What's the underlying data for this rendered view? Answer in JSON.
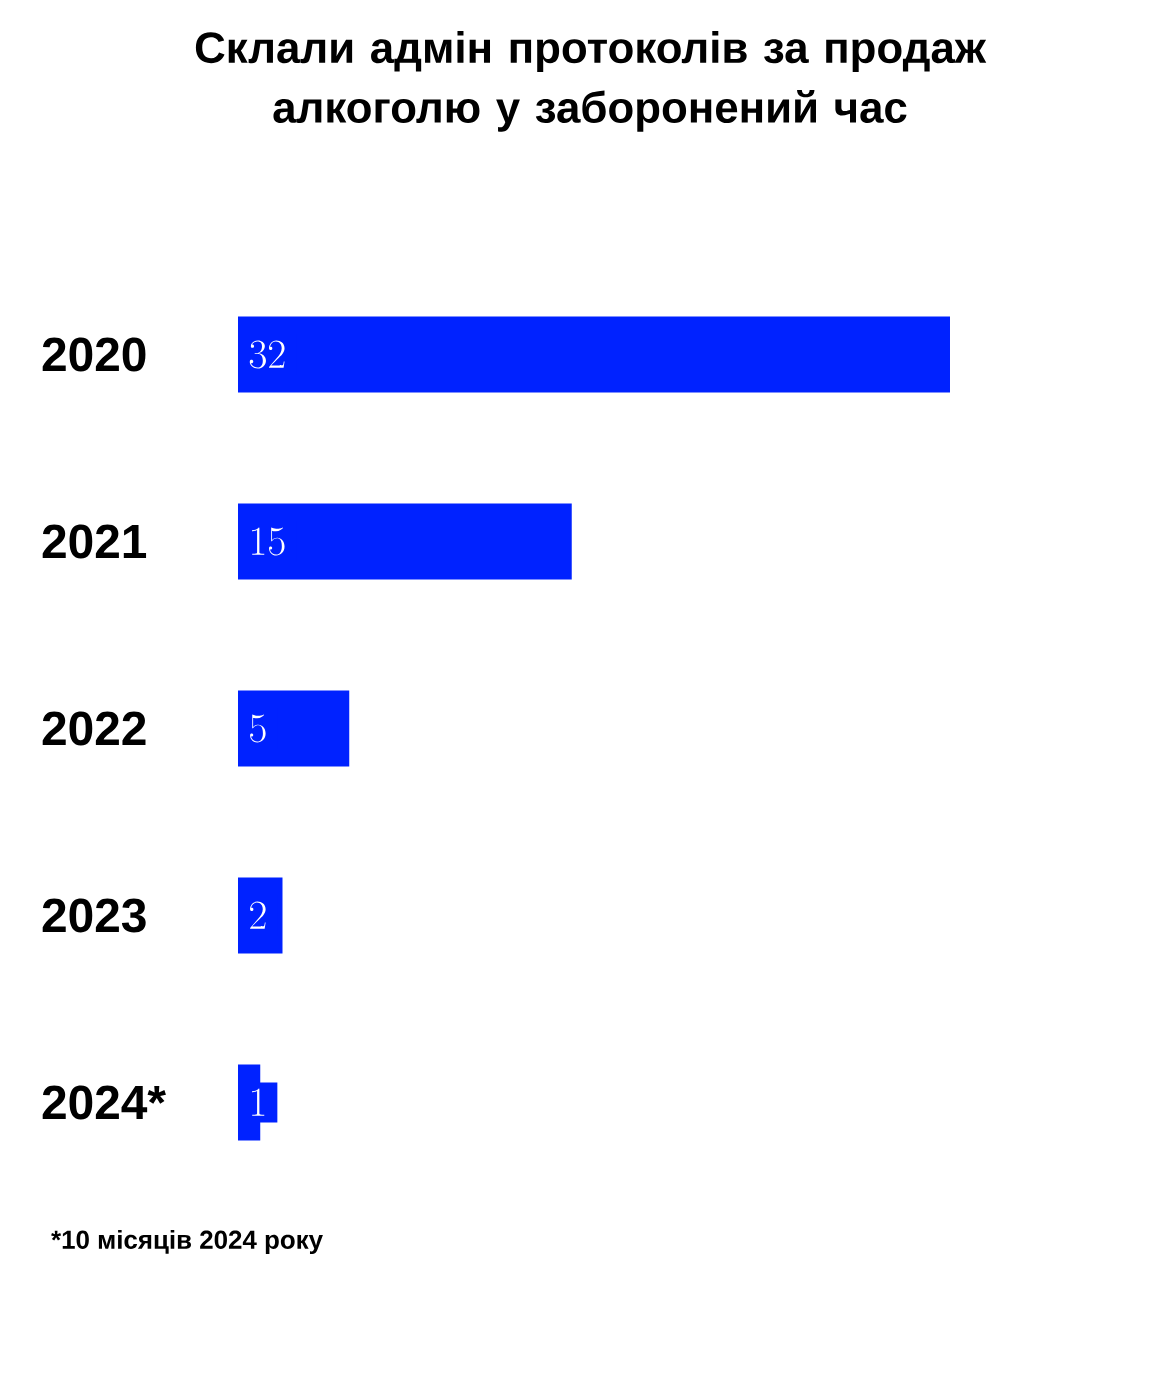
{
  "chart_data": {
    "type": "bar",
    "orientation": "horizontal",
    "title": "Склали адмін протоколів за продаж алкоголю у заборонений час",
    "categories": [
      "2020",
      "2021",
      "2022",
      "2023",
      "2024*"
    ],
    "values": [
      32,
      15,
      5,
      2,
      1
    ],
    "color": "#0022ff",
    "data_labels": true,
    "annotations": [
      "*10 місяців 2024 року"
    ]
  }
}
